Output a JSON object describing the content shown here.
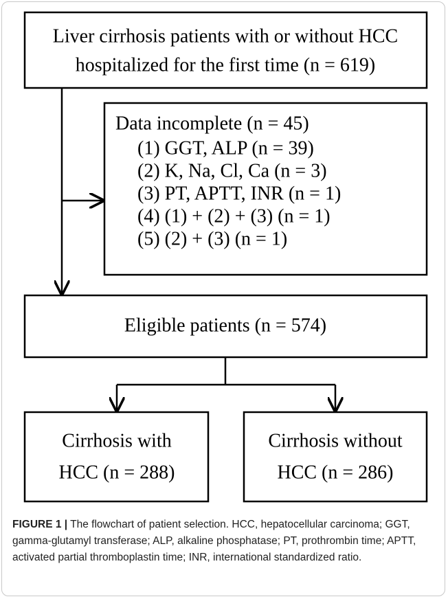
{
  "nodes": [
    {
      "lines": [
        "Liver cirrhosis patients with or without HCC",
        "hospitalized for the first time (n = 619)"
      ]
    },
    {
      "lines": [
        "Data incomplete (n = 45)",
        "(1)  GGT, ALP (n = 39)",
        "(2)  K, Na, Cl, Ca (n = 3)",
        "(3)  PT, APTT, INR (n = 1)",
        "(4)  (1) + (2) + (3) (n = 1)",
        "(5)  (2) + (3) (n = 1)"
      ]
    },
    {
      "lines": [
        "Eligible patients (n = 574)"
      ]
    },
    {
      "lines": [
        "Cirrhosis with",
        "HCC (n = 288)"
      ]
    },
    {
      "lines": [
        "Cirrhosis without",
        "HCC (n = 286)"
      ]
    }
  ],
  "caption": {
    "label": "FIGURE 1 |",
    "text": "The flowchart of patient selection. HCC, hepatocellular carcinoma; GGT, gamma-glutamyl transferase; ALP, alkaline phosphatase; PT, prothrombin time; APTT, activated partial thromboplastin time; INR, international standardized ratio."
  }
}
